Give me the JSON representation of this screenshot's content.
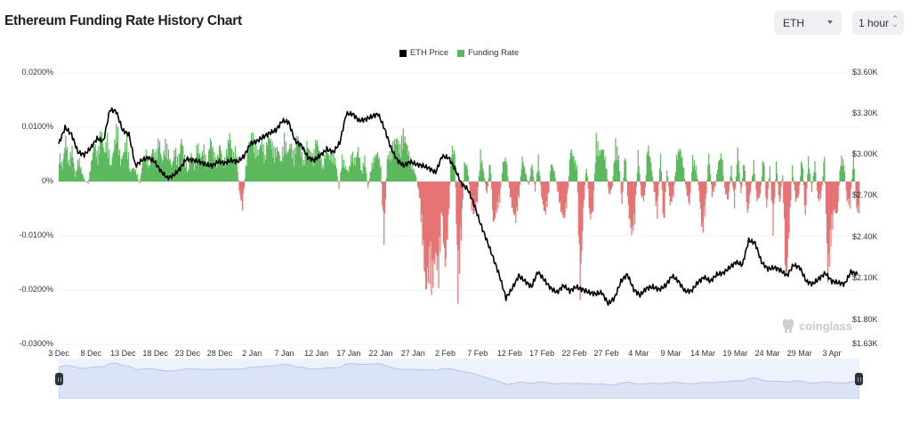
{
  "header": {
    "title": "Ethereum Funding Rate History Chart",
    "asset_select": {
      "value": "ETH",
      "icon": "caret-down-icon"
    },
    "interval_select": {
      "value": "1 hour",
      "icon": "up-down-chevron-icon"
    }
  },
  "legend": [
    {
      "label": "ETH Price",
      "color": "#000000"
    },
    {
      "label": "Funding Rate",
      "color": "#5cb85c"
    }
  ],
  "watermark": {
    "text": "coinglass",
    "icon": "coinglass-logo-icon"
  },
  "colors": {
    "positive": "#5cb85c",
    "negative": "#e57373",
    "price_line": "#000000",
    "grid": "#f0f0f0",
    "navigator_fill": "#dbe3f7",
    "navigator_line": "#b7c4ec"
  },
  "chart_data": {
    "type": "bar+line",
    "title": "Ethereum Funding Rate History Chart",
    "xlabel": "",
    "ylabel_left": "Funding Rate",
    "ylabel_right": "ETH Price",
    "y_left_ticks": [
      "0.0200%",
      "0.0100%",
      "0%",
      "-0.0100%",
      "-0.0200%",
      "-0.0300%"
    ],
    "y_left_range": [
      -0.03,
      0.02
    ],
    "y_right_ticks": [
      "$3.60K",
      "$3.30K",
      "$3.00K",
      "$2.70K",
      "$2.40K",
      "$2.10K",
      "$1.80K",
      "$1.63K"
    ],
    "y_right_range": [
      1630,
      3600
    ],
    "x_ticks": [
      "3 Dec",
      "8 Dec",
      "13 Dec",
      "18 Dec",
      "23 Dec",
      "28 Dec",
      "2 Jan",
      "7 Jan",
      "12 Jan",
      "17 Jan",
      "22 Jan",
      "27 Jan",
      "2 Feb",
      "7 Feb",
      "12 Feb",
      "17 Feb",
      "22 Feb",
      "27 Feb",
      "4 Mar",
      "9 Mar",
      "14 Mar",
      "19 Mar",
      "24 Mar",
      "29 Mar",
      "3 Apr"
    ],
    "legend_position": "top-center",
    "grid": true,
    "series": [
      {
        "name": "ETH Price",
        "type": "line",
        "unit": "USD",
        "sample_days_from_3dec": [
          0,
          1,
          2,
          3,
          4,
          5,
          6,
          7,
          8,
          9,
          10,
          11,
          12,
          13,
          14,
          15,
          16,
          17,
          18,
          19,
          20,
          21,
          22,
          23,
          24,
          25,
          26,
          27,
          28,
          29,
          30,
          31,
          32,
          33,
          34,
          35,
          36,
          37,
          38,
          39,
          40,
          41,
          42,
          43,
          44,
          45,
          46,
          47,
          48,
          49,
          50,
          51,
          52,
          53,
          54,
          55,
          56,
          57,
          58,
          59,
          60,
          61,
          62,
          63,
          64,
          65,
          66,
          67,
          68,
          69,
          70,
          71,
          72,
          73,
          74,
          75,
          76,
          77,
          78,
          79,
          80,
          81,
          82,
          83,
          84,
          85,
          86,
          87,
          88,
          89,
          90,
          91,
          92,
          93,
          94,
          95,
          96,
          97,
          98,
          99,
          100,
          101,
          102,
          103,
          104,
          105,
          106,
          107,
          108,
          109,
          110,
          111,
          112,
          113,
          114,
          115,
          116,
          117,
          118,
          119,
          120,
          121,
          122,
          123,
          124
        ],
        "values": [
          3080,
          3200,
          3150,
          3020,
          3000,
          3050,
          3120,
          3100,
          3330,
          3320,
          3180,
          3150,
          2920,
          2960,
          2980,
          2950,
          2880,
          2830,
          2850,
          2900,
          2970,
          2960,
          2950,
          2930,
          2920,
          2950,
          2940,
          2960,
          2950,
          2990,
          3080,
          3100,
          3130,
          3160,
          3180,
          3250,
          3240,
          3100,
          3070,
          2980,
          2960,
          3000,
          3040,
          3020,
          3090,
          3300,
          3300,
          3250,
          3260,
          3280,
          3300,
          3190,
          3050,
          2960,
          2920,
          2950,
          2930,
          2920,
          2900,
          2870,
          2990,
          2980,
          2900,
          2790,
          2750,
          2640,
          2500,
          2380,
          2250,
          2120,
          1960,
          2030,
          2120,
          2080,
          2040,
          2150,
          2090,
          2030,
          2000,
          2050,
          2010,
          2040,
          2020,
          2000,
          1990,
          2000,
          1920,
          1960,
          2080,
          2130,
          2020,
          1980,
          2030,
          2040,
          2020,
          2050,
          2120,
          2080,
          2010,
          2010,
          2070,
          2110,
          2080,
          2130,
          2140,
          2180,
          2220,
          2200,
          2380,
          2360,
          2220,
          2170,
          2180,
          2160,
          2120,
          2200,
          2180,
          2080,
          2060,
          2100,
          2140,
          2080,
          2070,
          2060,
          2150,
          2130
        ]
      },
      {
        "name": "Funding Rate",
        "type": "bar",
        "unit": "%",
        "note": "approximate hourly funding rate envelope, sampled every half day",
        "values": [
          0.006,
          0.003,
          0.009,
          0.004,
          0.007,
          0.001,
          0.005,
          0.002,
          0.0001,
          -0.0004,
          0.004,
          0.008,
          0.005,
          0.011,
          0.006,
          0.009,
          0.003,
          0.007,
          0.012,
          0.004,
          0.006,
          0.009,
          0.002,
          0.003,
          0.002,
          -0.0005,
          0.004,
          0.006,
          0.003,
          0.007,
          0.005,
          0.009,
          0.004,
          0.008,
          0.006,
          0.003,
          0.007,
          0.004,
          0.009,
          0.005,
          0.002,
          0.006,
          0.003,
          0.008,
          0.005,
          0.007,
          0.003,
          0.009,
          0.006,
          0.004,
          0.008,
          0.003,
          0.006,
          0.01,
          0.005,
          0.007,
          -0.002,
          -0.0055,
          0.003,
          0.008,
          0.01,
          0.007,
          0.006,
          0.009,
          0.005,
          0.01,
          0.008,
          0.006,
          0.007,
          0.004,
          0.009,
          0.006,
          0.008,
          0.005,
          0.01,
          0.007,
          0.004,
          0.008,
          0.006,
          0.005,
          0.009,
          0.006,
          0.003,
          0.007,
          0.005,
          0.006,
          0.004,
          -0.0015,
          0.005,
          0.003,
          0.002,
          0.006,
          0.004,
          0.007,
          0.002,
          0.005,
          -0.0015,
          0.003,
          0.005,
          0.006,
          0.003,
          -0.012,
          0.005,
          0.006,
          0.008,
          0.009,
          0.007,
          0.01,
          0.008,
          0.005,
          0.003,
          0.001,
          -0.003,
          -0.012,
          -0.023,
          -0.018,
          -0.022,
          -0.015,
          -0.02,
          -0.006,
          -0.018,
          -0.009,
          0.007,
          0.006,
          -0.023,
          -0.011,
          0.004,
          0.003,
          -0.005,
          -0.007,
          -0.004,
          0.006,
          0.002,
          -0.003,
          0.005,
          -0.009,
          -0.006,
          -0.004,
          0.004,
          0.005,
          -0.002,
          -0.006,
          -0.008,
          -0.003,
          0.005,
          0.002,
          -0.001,
          0.004,
          -0.002,
          0.005,
          -0.003,
          -0.007,
          -0.004,
          0.004,
          0.002,
          -0.002,
          -0.006,
          -0.008,
          -0.004,
          0.007,
          0.005,
          0.003,
          -0.023,
          -0.006,
          0.004,
          -0.008,
          -0.006,
          0.009,
          0.006,
          0.007,
          0.004,
          -0.003,
          -0.001,
          0.008,
          0.005,
          -0.005,
          0.007,
          -0.006,
          -0.011,
          -0.008,
          0.006,
          -0.003,
          -0.004,
          0.008,
          0.004,
          -0.002,
          -0.007,
          0.006,
          -0.01,
          0.003,
          -0.005,
          -0.003,
          0.005,
          0.007,
          0.004,
          -0.002,
          -0.005,
          0.005,
          0.003,
          -0.002,
          -0.011,
          -0.005,
          0.006,
          -0.003,
          -0.001,
          0.004,
          0.006,
          -0.002,
          -0.004,
          0.003,
          -0.005,
          0.007,
          -0.003,
          0.005,
          -0.007,
          -0.002,
          0.004,
          -0.004,
          -0.003,
          0.006,
          -0.006,
          0.003,
          -0.01,
          0.004,
          -0.005,
          0.002,
          -0.022,
          -0.01,
          0.003,
          -0.004,
          -0.003,
          0.006,
          -0.008,
          0.005,
          -0.002,
          0.004,
          -0.004,
          -0.003,
          0.006,
          -0.02,
          -0.012,
          -0.006,
          -0.007,
          0.005,
          0.004,
          -0.004,
          -0.005,
          0.006,
          -0.006
        ]
      }
    ]
  },
  "navigator": {
    "left_handle": "range-start-handle",
    "right_handle": "range-end-handle"
  }
}
